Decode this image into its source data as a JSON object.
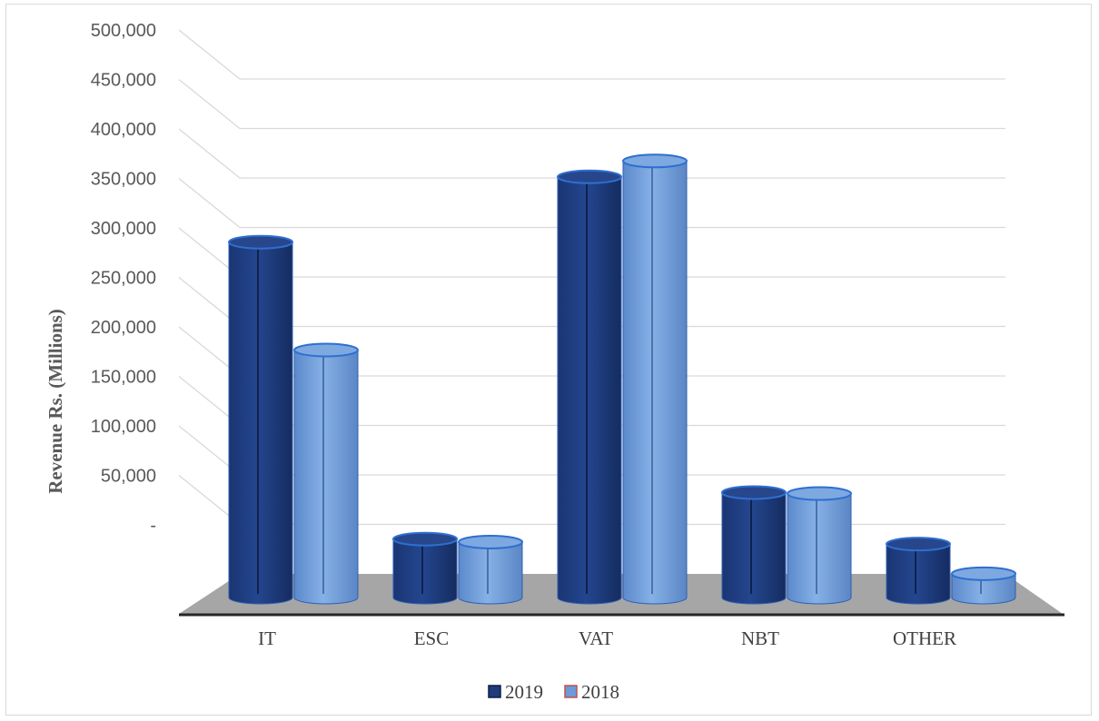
{
  "chart_data": {
    "type": "bar",
    "title": "",
    "ylabel": "Revenue Rs. (Millions)",
    "xlabel": "",
    "categories": [
      "IT",
      "ESC",
      "VAT",
      "NBT",
      "OTHER"
    ],
    "series": [
      {
        "name": "2019",
        "values": [
          359000,
          59000,
          425000,
          106000,
          54000
        ]
      },
      {
        "name": "2018",
        "values": [
          250000,
          56000,
          441000,
          105000,
          24000
        ]
      }
    ],
    "ylim": [
      0,
      500000
    ],
    "yticks": [
      "-",
      "50,000",
      "100,000",
      "150,000",
      "200,000",
      "250,000",
      "300,000",
      "350,000",
      "400,000",
      "450,000",
      "500,000"
    ],
    "grid": true,
    "legend": "bottom",
    "colors": {
      "2019": "#1f3b7a",
      "2018": "#6d9ad8",
      "floor": "#a6a6a6",
      "grid": "#d9d9d9"
    }
  }
}
